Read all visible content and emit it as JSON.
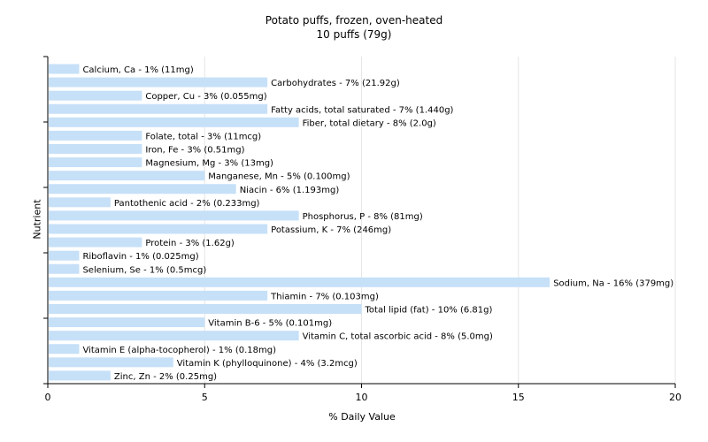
{
  "chart_data": {
    "type": "bar",
    "orientation": "horizontal",
    "title": "Potato puffs, frozen, oven-heated",
    "subtitle": "10 puffs (79g)",
    "xlabel": "% Daily Value",
    "ylabel": "Nutrient",
    "xlim": [
      0,
      20
    ],
    "xticks": [
      0,
      5,
      10,
      15,
      20
    ],
    "grid": true,
    "bar_color": "#c6e0f8",
    "categories": [
      "Calcium, Ca",
      "Carbohydrates",
      "Copper, Cu",
      "Fatty acids, total saturated",
      "Fiber, total dietary",
      "Folate, total",
      "Iron, Fe",
      "Magnesium, Mg",
      "Manganese, Mn",
      "Niacin",
      "Pantothenic acid",
      "Phosphorus, P",
      "Potassium, K",
      "Protein",
      "Riboflavin",
      "Selenium, Se",
      "Sodium, Na",
      "Thiamin",
      "Total lipid (fat)",
      "Vitamin B-6",
      "Vitamin C, total ascorbic acid",
      "Vitamin E (alpha-tocopherol)",
      "Vitamin K (phylloquinone)",
      "Zinc, Zn"
    ],
    "values": [
      1,
      7,
      3,
      7,
      8,
      3,
      3,
      3,
      5,
      6,
      2,
      8,
      7,
      3,
      1,
      1,
      16,
      7,
      10,
      5,
      8,
      1,
      4,
      2
    ],
    "labels": [
      "Calcium, Ca - 1% (11mg)",
      "Carbohydrates - 7% (21.92g)",
      "Copper, Cu - 3% (0.055mg)",
      "Fatty acids, total saturated - 7% (1.440g)",
      "Fiber, total dietary - 8% (2.0g)",
      "Folate, total - 3% (11mcg)",
      "Iron, Fe - 3% (0.51mg)",
      "Magnesium, Mg - 3% (13mg)",
      "Manganese, Mn - 5% (0.100mg)",
      "Niacin - 6% (1.193mg)",
      "Pantothenic acid - 2% (0.233mg)",
      "Phosphorus, P - 8% (81mg)",
      "Potassium, K - 7% (246mg)",
      "Protein - 3% (1.62g)",
      "Riboflavin - 1% (0.025mg)",
      "Selenium, Se - 1% (0.5mcg)",
      "Sodium, Na - 16% (379mg)",
      "Thiamin - 7% (0.103mg)",
      "Total lipid (fat) - 10% (6.81g)",
      "Vitamin B-6 - 5% (0.101mg)",
      "Vitamin C, total ascorbic acid - 8% (5.0mg)",
      "Vitamin E (alpha-tocopherol) - 1% (0.18mg)",
      "Vitamin K (phylloquinone) - 4% (3.2mcg)",
      "Zinc, Zn - 2% (0.25mg)"
    ]
  }
}
